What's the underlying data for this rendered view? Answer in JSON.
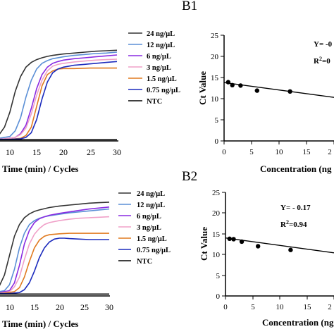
{
  "chart_data": [
    {
      "type": "line",
      "xlabel": "Time (min) / Cycles",
      "xticks": [
        "10",
        "15",
        "20",
        "25",
        "30"
      ],
      "xlim": [
        5,
        30
      ],
      "ylim": [
        0,
        100
      ],
      "legend_position": "top-right",
      "series": [
        {
          "name": "24 ng/µL",
          "color": "#333333",
          "x": [
            5,
            7,
            8,
            9,
            10,
            11,
            12,
            13,
            14,
            15,
            16,
            17,
            18,
            20,
            22,
            24,
            26,
            28,
            30
          ],
          "y": [
            1,
            3,
            6,
            14,
            30,
            52,
            68,
            78,
            83,
            86,
            88,
            89.5,
            90.5,
            92,
            93,
            94,
            95,
            95.5,
            96
          ]
        },
        {
          "name": "12 ng/µL",
          "color": "#5b8fd6",
          "x": [
            5,
            8,
            10,
            11,
            12,
            13,
            14,
            15,
            16,
            17,
            18,
            20,
            22,
            24,
            26,
            28,
            30
          ],
          "y": [
            1,
            2,
            4,
            10,
            24,
            46,
            64,
            76,
            82,
            85,
            87,
            89,
            90.5,
            91.5,
            92.5,
            93,
            94
          ]
        },
        {
          "name": "6 ng/µL",
          "color": "#8a2be2",
          "x": [
            5,
            9,
            11,
            12,
            13,
            14,
            15,
            16,
            17,
            18,
            19,
            20,
            22,
            24,
            26,
            28,
            30
          ],
          "y": [
            1,
            1.5,
            3,
            7,
            16,
            34,
            55,
            70,
            78,
            82,
            84,
            85.5,
            87,
            88,
            89,
            90,
            91
          ]
        },
        {
          "name": "3 ng/µL",
          "color": "#f0a0c8",
          "x": [
            5,
            9,
            11,
            12,
            13,
            14,
            15,
            16,
            17,
            18,
            19,
            20,
            22,
            24,
            26,
            28,
            30
          ],
          "y": [
            1,
            1.5,
            3,
            6,
            13,
            28,
            48,
            64,
            74,
            79,
            81,
            82,
            83.5,
            84.5,
            85.5,
            86,
            86.5
          ]
        },
        {
          "name": "1.5 ng/µL",
          "color": "#e07a1f",
          "x": [
            5,
            10,
            12,
            13,
            14,
            15,
            16,
            17,
            18,
            19,
            20,
            22,
            25,
            28,
            30
          ],
          "y": [
            1,
            1,
            2,
            5,
            14,
            36,
            58,
            70,
            74,
            76,
            76.5,
            76.5,
            77,
            77,
            77
          ]
        },
        {
          "name": "0.75 ng/µL",
          "color": "#1c2bbd",
          "x": [
            5,
            10,
            12,
            13,
            14,
            15,
            16,
            17,
            18,
            19,
            20,
            22,
            24,
            26,
            28,
            30
          ],
          "y": [
            1,
            1,
            1.5,
            3,
            8,
            22,
            44,
            62,
            72,
            76,
            78,
            80,
            81,
            82,
            83,
            84
          ]
        },
        {
          "name": "NTC",
          "color": "#000000",
          "x": [
            5,
            30
          ],
          "y": [
            0.5,
            0.5
          ]
        }
      ]
    },
    {
      "type": "scatter",
      "title": "B1",
      "xlabel": "Concentration (ng",
      "ylabel": "Ct Value",
      "xticks": [
        "0",
        "5",
        "10",
        "15",
        "2"
      ],
      "yticks": [
        "0",
        "5",
        "10",
        "15",
        "20",
        "25"
      ],
      "xlim": [
        0,
        20
      ],
      "ylim": [
        0,
        25
      ],
      "equation": "Y= -0",
      "r2_prefix": "R",
      "r2_sup": "2",
      "r2_suffix": "=0",
      "points": {
        "x": [
          0.75,
          1.5,
          3,
          6,
          12
        ],
        "y": [
          13.9,
          13.2,
          13.1,
          11.9,
          11.7
        ]
      },
      "fit": {
        "x": [
          0,
          20
        ],
        "y": [
          13.8,
          10.3
        ]
      }
    },
    {
      "type": "line",
      "xlabel": "Time (min) / Cycles",
      "xticks": [
        "10",
        "15",
        "20",
        "25",
        "30"
      ],
      "xlim": [
        5,
        30
      ],
      "ylim": [
        0,
        100
      ],
      "legend_position": "top-right",
      "series": [
        {
          "name": "24 ng/µL",
          "color": "#333333",
          "x": [
            5,
            6,
            7,
            8,
            9,
            10,
            11,
            12,
            13,
            14,
            15,
            16,
            18,
            20,
            22,
            24,
            26,
            28,
            30
          ],
          "y": [
            1,
            2,
            4,
            9,
            20,
            40,
            60,
            72,
            79,
            83,
            85.5,
            87,
            89.5,
            91,
            92,
            93,
            94,
            94.5,
            95
          ]
        },
        {
          "name": "12 ng/µL",
          "color": "#5b8fd6",
          "x": [
            5,
            7,
            9,
            10,
            11,
            12,
            13,
            14,
            15,
            16,
            17,
            18,
            20,
            22,
            24,
            26,
            28,
            30
          ],
          "y": [
            1,
            2,
            4,
            10,
            26,
            48,
            63,
            72,
            76,
            78.5,
            80,
            81,
            82.5,
            84,
            85,
            86,
            87,
            88
          ]
        },
        {
          "name": "6 ng/µL",
          "color": "#8a2be2",
          "x": [
            5,
            8,
            10,
            11,
            12,
            13,
            14,
            15,
            16,
            17,
            18,
            20,
            22,
            24,
            26,
            28,
            30
          ],
          "y": [
            1,
            2,
            4,
            12,
            30,
            52,
            66,
            74,
            78,
            80,
            81.5,
            83.5,
            85,
            86.5,
            88,
            89,
            90
          ]
        },
        {
          "name": "3 ng/µL",
          "color": "#f0a0c8",
          "x": [
            5,
            8,
            10,
            11,
            12,
            13,
            14,
            15,
            16,
            17,
            18,
            20,
            22,
            24,
            26,
            28,
            30
          ],
          "y": [
            1,
            1.5,
            3,
            8,
            18,
            36,
            52,
            62,
            68,
            72,
            74,
            76,
            77.5,
            78.5,
            79,
            79.5,
            80
          ]
        },
        {
          "name": "1.5 ng/µL",
          "color": "#e07a1f",
          "x": [
            5,
            9,
            11,
            12,
            13,
            14,
            15,
            16,
            17,
            18,
            19,
            20,
            22,
            25,
            28,
            30
          ],
          "y": [
            1,
            1.5,
            3,
            7,
            18,
            34,
            48,
            56,
            60,
            61.5,
            62,
            62.5,
            63,
            63,
            63,
            63
          ]
        },
        {
          "name": "0.75 ng/µL",
          "color": "#1c2bbd",
          "x": [
            5,
            10,
            12,
            13,
            14,
            15,
            16,
            17,
            18,
            19,
            20,
            21,
            22,
            24,
            26,
            28,
            30
          ],
          "y": [
            1,
            1,
            2,
            5,
            12,
            24,
            38,
            48,
            54,
            57,
            58,
            58,
            57.5,
            57,
            56.5,
            56.5,
            56.5
          ]
        },
        {
          "name": "NTC",
          "color": "#000000",
          "x": [
            5,
            30
          ],
          "y": [
            0.5,
            0.5
          ]
        }
      ]
    },
    {
      "type": "scatter",
      "title": "B2",
      "xlabel": "Concentration (ng",
      "ylabel": "Ct Value",
      "xticks": [
        "0",
        "5",
        "10",
        "15",
        "2"
      ],
      "yticks": [
        "0",
        "5",
        "10",
        "15",
        "20",
        "25"
      ],
      "xlim": [
        0,
        20
      ],
      "ylim": [
        0,
        25
      ],
      "equation": "Y= - 0.17",
      "r2_prefix": "R",
      "r2_sup": "2",
      "r2_suffix": "=0.94",
      "points": {
        "x": [
          0.75,
          1.5,
          3,
          6,
          12
        ],
        "y": [
          13.8,
          13.7,
          13.1,
          12.0,
          11.1
        ]
      },
      "fit": {
        "x": [
          0,
          20
        ],
        "y": [
          14.0,
          10.4
        ]
      }
    }
  ]
}
